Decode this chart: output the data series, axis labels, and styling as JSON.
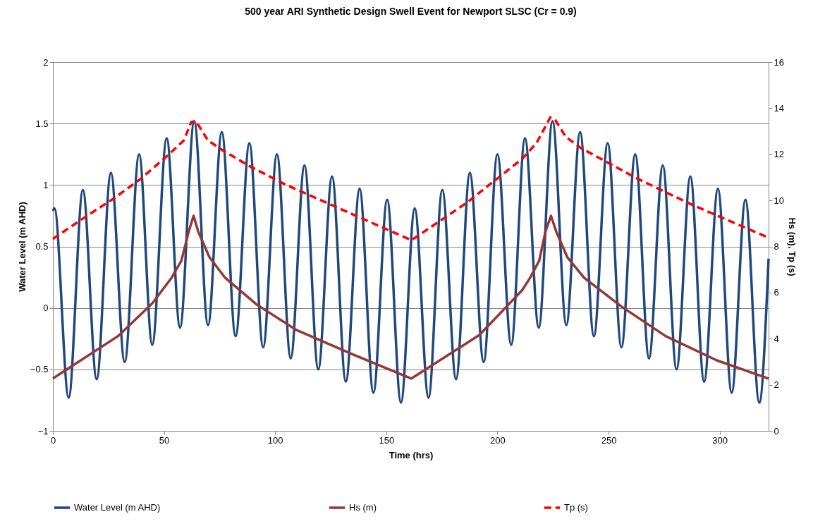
{
  "chart_data": {
    "type": "line",
    "title": "500 year ARI Synthetic Design Swell Event for Newport SLSC (Cr = 0.9)",
    "xlabel": "Time (hrs)",
    "ylabel": "Water Level (m AHD)",
    "y2label": "Hs (m), Tp (s)",
    "xlim": [
      0,
      322
    ],
    "xticks": [
      0,
      50,
      100,
      150,
      200,
      250,
      300
    ],
    "ylim": [
      -1,
      2
    ],
    "yticks": [
      -1,
      -0.5,
      0,
      0.5,
      1,
      1.5,
      2
    ],
    "y2lim": [
      0,
      16
    ],
    "y2ticks": [
      0,
      2,
      4,
      6,
      8,
      10,
      12,
      14,
      16
    ],
    "grid": "y",
    "legend": "bottom",
    "series": [
      {
        "name": "Water Level (m AHD)",
        "color": "#1f497d",
        "line_style": "solid",
        "x": [
          0,
          0.7,
          7.1,
          13.5,
          19.7,
          26.1,
          32.3,
          38.8,
          44.7,
          51.2,
          57.2,
          63.6,
          69.8,
          76.0,
          82.2,
          88.4,
          94.6,
          100.8,
          107.0,
          113.2,
          119.4,
          125.6,
          131.8,
          138.0,
          144.2,
          150.4,
          156.6,
          162.8,
          169.0,
          175.2,
          181.4,
          187.6,
          193.8,
          200.0,
          206.2,
          212.4,
          218.6,
          224.8,
          231.0,
          237.2,
          243.4,
          249.6,
          255.8,
          262.0,
          268.2,
          274.4,
          280.6,
          286.8,
          293.0,
          299.2,
          305.4,
          311.6,
          317.8,
          322
        ],
        "values": [
          0.79,
          0.81,
          -0.73,
          0.96,
          -0.58,
          1.1,
          -0.44,
          1.25,
          -0.3,
          1.38,
          -0.16,
          1.52,
          -0.14,
          1.43,
          -0.23,
          1.34,
          -0.32,
          1.25,
          -0.41,
          1.16,
          -0.5,
          1.07,
          -0.6,
          0.97,
          -0.69,
          0.88,
          -0.77,
          0.81,
          -0.73,
          0.96,
          -0.58,
          1.1,
          -0.44,
          1.25,
          -0.3,
          1.38,
          -0.16,
          1.52,
          -0.14,
          1.43,
          -0.23,
          1.34,
          -0.32,
          1.25,
          -0.41,
          1.16,
          -0.5,
          1.07,
          -0.6,
          0.97,
          -0.69,
          0.88,
          -0.77,
          0.4
        ]
      },
      {
        "name": "Hs (m)",
        "color": "#953735",
        "line_style": "solid",
        "axis": "y2",
        "x": [
          0,
          10.8,
          29.3,
          44.7,
          53.4,
          57.8,
          61.1,
          63.3,
          65.4,
          70.4,
          77.5,
          91.7,
          109.7,
          136.1,
          161.3,
          191.9,
          206.1,
          211.2,
          215,
          218.8,
          221.6,
          224.1,
          226.5,
          231.4,
          239.0,
          256.0,
          275.7,
          298.7,
          322
        ],
        "values": [
          2.27,
          2.95,
          4.11,
          5.53,
          6.64,
          7.38,
          8.64,
          9.33,
          8.64,
          7.54,
          6.64,
          5.48,
          4.37,
          3.27,
          2.27,
          4.16,
          5.59,
          6.11,
          6.69,
          7.38,
          8.64,
          9.33,
          8.64,
          7.54,
          6.64,
          5.38,
          4.11,
          3.06,
          2.27
        ]
      },
      {
        "name": "Tp (s)",
        "color": "#ff0000",
        "line_style": "dashed",
        "axis": "y2",
        "x": [
          0,
          14.6,
          27.2,
          39.2,
          51.2,
          58.9,
          62.2,
          64.3,
          69.8,
          76.4,
          88.4,
          103.3,
          109.2,
          161.3,
          186.4,
          211.2,
          217.6,
          223.8,
          226.0,
          230.8,
          237.4,
          262.6,
          287.8,
          322
        ],
        "values": [
          8.33,
          9.28,
          10.07,
          10.91,
          11.91,
          12.6,
          13.39,
          13.44,
          12.6,
          12.17,
          11.49,
          10.75,
          10.49,
          8.27,
          9.91,
          11.81,
          12.49,
          13.6,
          13.49,
          12.75,
          12.28,
          10.96,
          9.8,
          8.38
        ]
      }
    ]
  }
}
